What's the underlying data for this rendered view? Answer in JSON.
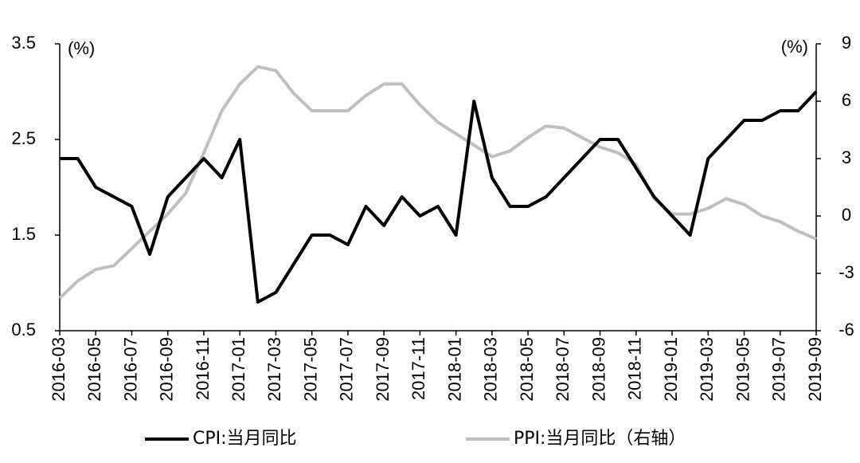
{
  "chart_data": {
    "type": "line",
    "categories": [
      "2016-03",
      null,
      "2016-05",
      null,
      "2016-07",
      null,
      "2016-09",
      null,
      "2016-11",
      null,
      "2017-01",
      null,
      "2017-03",
      null,
      "2017-05",
      null,
      "2017-07",
      null,
      "2017-09",
      null,
      "2017-11",
      null,
      "2018-01",
      null,
      "2018-03",
      null,
      "2018-05",
      null,
      "2018-07",
      null,
      "2018-09",
      null,
      "2018-11",
      null,
      "2019-01",
      null,
      "2019-03",
      null,
      "2019-05",
      null,
      "2019-07",
      null,
      "2019-09"
    ],
    "series": [
      {
        "name": "CPI:当月同比",
        "color": "#000000",
        "axis": "y",
        "values": [
          2.3,
          2.3,
          2.0,
          1.9,
          1.8,
          1.3,
          1.9,
          2.1,
          2.3,
          2.1,
          2.5,
          0.8,
          0.9,
          1.2,
          1.5,
          1.5,
          1.4,
          1.8,
          1.6,
          1.9,
          1.7,
          1.8,
          1.5,
          2.9,
          2.1,
          1.8,
          1.8,
          1.9,
          2.1,
          2.3,
          2.5,
          2.5,
          2.2,
          1.9,
          1.7,
          1.5,
          2.3,
          2.5,
          2.7,
          2.7,
          2.8,
          2.8,
          3.0
        ]
      },
      {
        "name": "PPI:当月同比（右轴）",
        "color": "#bfbfbf",
        "axis": "y2",
        "values": [
          -4.3,
          -3.4,
          -2.8,
          -2.6,
          -1.7,
          -0.8,
          0.1,
          1.2,
          3.3,
          5.5,
          6.9,
          7.8,
          7.6,
          6.4,
          5.5,
          5.5,
          5.5,
          6.3,
          6.9,
          6.9,
          5.8,
          4.9,
          4.3,
          3.7,
          3.1,
          3.4,
          4.1,
          4.7,
          4.6,
          4.1,
          3.6,
          3.3,
          2.7,
          0.9,
          0.1,
          0.1,
          0.4,
          0.9,
          0.6,
          0.0,
          -0.3,
          -0.8,
          -1.2
        ]
      }
    ],
    "ylim": [
      0.5,
      3.5
    ],
    "yticks": [
      0.5,
      1.5,
      2.5,
      3.5
    ],
    "y2lim": [
      -6,
      9
    ],
    "y2ticks": [
      -6,
      -3,
      0,
      3,
      6,
      9
    ],
    "y_unit": "(%)",
    "y2_unit": "(%)",
    "legend": "bottom",
    "grid": false
  }
}
